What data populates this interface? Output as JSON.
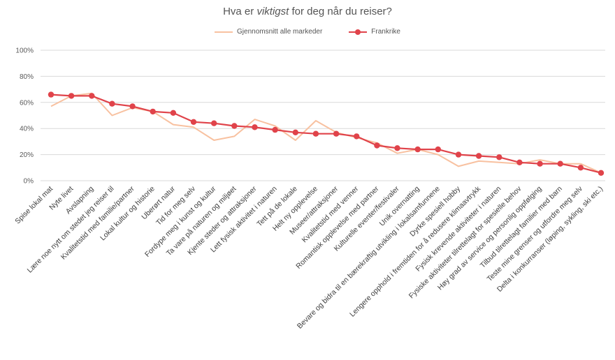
{
  "chart_data": {
    "type": "line",
    "title_before": "Hva er ",
    "title_emph": "viktigst",
    "title_after": " for deg når du reiser?",
    "ylim": [
      0,
      100
    ],
    "yticks": [
      "0%",
      "20%",
      "40%",
      "60%",
      "80%",
      "100%"
    ],
    "yticks_values": [
      0,
      20,
      40,
      60,
      80,
      100
    ],
    "grid": true,
    "legend_position": "top",
    "categories": [
      "Spise lokal mat",
      "Nyte livet",
      "Avslapning",
      "Lære noe nytt om stedet jeg reiser til",
      "Kvalitetstid med familie/partner",
      "Lokal kultur og historie",
      "Uberørt natur",
      "Tid for meg selv",
      "Fordype meg i kunst og kultur",
      "Ta vare på naturen og miljøet",
      "Kjente steder og attraksjoner",
      "Lett fysisk aktivitet i naturen",
      "Tett på de lokale",
      "Helt ny opplevelse",
      "Museer/attraksjoner",
      "Kvalitetstid med venner",
      "Romantisk opplevelse med partner",
      "Kulturelle eventer/festivaler",
      "Unik overnatting",
      "Bevare og bidra til en bærekraftig utvikling i lokalsamfunnene",
      "Dyrke spesiell hobby",
      "Lengere opphold i fremtiden for å redusere klimaavtrykk",
      "Fysisk krevende aktiviteter i naturen",
      "Fysiske aktiviteter tilrettelagt for spesielle behov",
      "Høy grad av service og personlig oppfølging",
      "Tilbud tilrettelagt familier med barn",
      "Teste mine grenser og utfordre meg selv",
      "Delta i konkurranser (løping, sykling, ski etc.)"
    ],
    "series": [
      {
        "name": "Gjennomsnitt alle markeder",
        "color": "#f8c1a0",
        "marker": false,
        "values": [
          57,
          65,
          67,
          50,
          56,
          53,
          43,
          41,
          31,
          34,
          47,
          42,
          31,
          46,
          37,
          33,
          29,
          21,
          24,
          20,
          11,
          15,
          14,
          13,
          16,
          13,
          13,
          6
        ]
      },
      {
        "name": "Frankrike",
        "color": "#e0434a",
        "marker": true,
        "values": [
          66,
          65,
          65,
          59,
          57,
          53,
          52,
          45,
          44,
          42,
          41,
          39,
          37,
          36,
          36,
          34,
          27,
          25,
          24,
          24,
          20,
          19,
          18,
          14,
          13,
          13,
          10,
          6
        ]
      }
    ]
  }
}
